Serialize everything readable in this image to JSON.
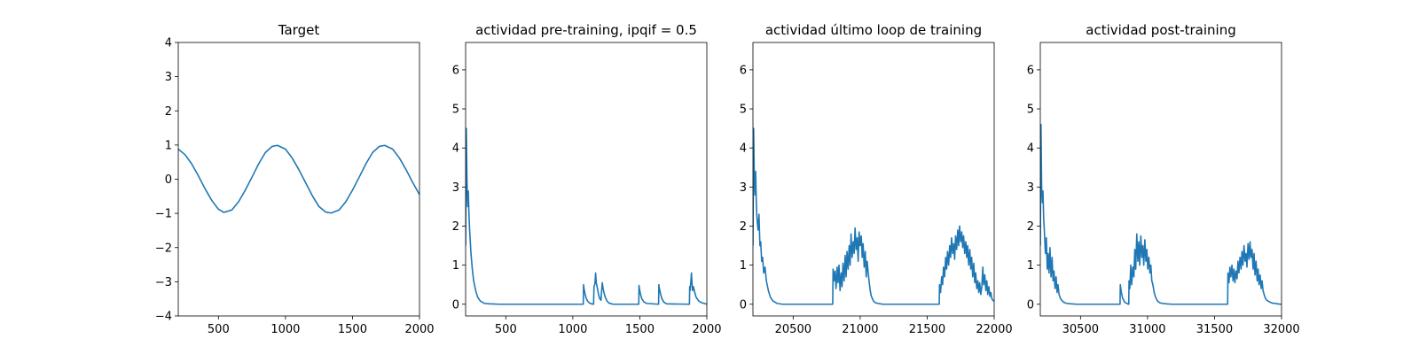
{
  "chart_data": [
    {
      "type": "line",
      "title": "Target",
      "xlim": [
        200,
        2000
      ],
      "ylim": [
        -4,
        4
      ],
      "xticks": [
        500,
        1000,
        1500,
        2000
      ],
      "yticks": [
        -4,
        -3,
        -2,
        -1,
        0,
        1,
        2,
        3,
        4
      ],
      "color": "#1f77b4",
      "series": [
        {
          "x": [
            200,
            250,
            300,
            350,
            400,
            450,
            500,
            540,
            600,
            650,
            700,
            750,
            800,
            850,
            900,
            940,
            1000,
            1050,
            1100,
            1150,
            1200,
            1250,
            1300,
            1340,
            1400,
            1450,
            1500,
            1550,
            1600,
            1650,
            1700,
            1740,
            1800,
            1850,
            1900,
            1950,
            2000
          ],
          "values": [
            0.88,
            0.72,
            0.45,
            0.1,
            -0.28,
            -0.62,
            -0.88,
            -0.97,
            -0.9,
            -0.66,
            -0.32,
            0.06,
            0.45,
            0.78,
            0.96,
            0.99,
            0.88,
            0.62,
            0.28,
            -0.1,
            -0.48,
            -0.8,
            -0.96,
            -0.99,
            -0.9,
            -0.66,
            -0.32,
            0.06,
            0.45,
            0.78,
            0.96,
            0.99,
            0.88,
            0.62,
            0.28,
            -0.1,
            -0.45
          ]
        }
      ]
    },
    {
      "type": "line",
      "title": "actividad pre-training, ipqif = 0.5",
      "xlim": [
        200,
        2000
      ],
      "ylim": [
        -0.3,
        6.7
      ],
      "xticks": [
        500,
        1000,
        1500,
        2000
      ],
      "yticks": [
        0,
        1,
        2,
        3,
        4,
        5,
        6
      ],
      "color": "#1f77b4",
      "series": [
        {
          "x": [
            200,
            205,
            210,
            215,
            220,
            225,
            230,
            240,
            250,
            260,
            275,
            290,
            310,
            340,
            380,
            450,
            1078,
            1080,
            1083,
            1090,
            1100,
            1110,
            1125,
            1140,
            1155,
            1158,
            1165,
            1170,
            1175,
            1178,
            1185,
            1192,
            1200,
            1210,
            1215,
            1220,
            1225,
            1232,
            1240,
            1255,
            1270,
            1300,
            1492,
            1494,
            1497,
            1505,
            1515,
            1530,
            1550,
            1640,
            1642,
            1645,
            1655,
            1665,
            1680,
            1700,
            1870,
            1872,
            1875,
            1880,
            1885,
            1890,
            1893,
            1900,
            1910,
            1920,
            1940,
            1960,
            1980,
            2000
          ],
          "values": [
            1.5,
            4.5,
            3.2,
            2.5,
            2.9,
            2.3,
            1.9,
            1.3,
            0.9,
            0.6,
            0.35,
            0.18,
            0.08,
            0.02,
            0.01,
            0.0,
            0.0,
            0.5,
            0.42,
            0.28,
            0.15,
            0.08,
            0.03,
            0.01,
            0.0,
            0.45,
            0.52,
            0.8,
            0.55,
            0.5,
            0.38,
            0.25,
            0.15,
            0.1,
            0.35,
            0.55,
            0.42,
            0.3,
            0.2,
            0.08,
            0.03,
            0.0,
            0.0,
            0.48,
            0.4,
            0.26,
            0.14,
            0.06,
            0.02,
            0.0,
            0.5,
            0.42,
            0.26,
            0.14,
            0.05,
            0.01,
            0.0,
            0.45,
            0.35,
            0.55,
            0.8,
            0.5,
            0.35,
            0.45,
            0.3,
            0.18,
            0.08,
            0.04,
            0.02,
            0.0
          ]
        }
      ]
    },
    {
      "type": "line",
      "title": "actividad último loop de training",
      "xlim": [
        20200,
        22000
      ],
      "ylim": [
        -0.3,
        6.7
      ],
      "xticks": [
        20500,
        21000,
        21500,
        22000
      ],
      "yticks": [
        0,
        1,
        2,
        3,
        4,
        5,
        6
      ],
      "color": "#1f77b4",
      "series": [
        {
          "x": [
            20200,
            20205,
            20210,
            20215,
            20220,
            20225,
            20230,
            20238,
            20245,
            20252,
            20258,
            20265,
            20272,
            20280,
            20290,
            20300,
            20315,
            20330,
            20350,
            20380,
            20420,
            20500,
            20795,
            20798,
            20805,
            20812,
            20820,
            20828,
            20835,
            20842,
            20850,
            20858,
            20865,
            20872,
            20880,
            20888,
            20895,
            20902,
            20910,
            20918,
            20925,
            20932,
            20940,
            20948,
            20955,
            20962,
            20970,
            20978,
            20985,
            20992,
            21000,
            21008,
            21015,
            21022,
            21030,
            21038,
            21045,
            21052,
            21060,
            21068,
            21075,
            21082,
            21090,
            21100,
            21110,
            21120,
            21135,
            21150,
            21170,
            21200,
            21250,
            21300,
            21590,
            21592,
            21600,
            21608,
            21615,
            21622,
            21630,
            21638,
            21645,
            21652,
            21660,
            21668,
            21675,
            21682,
            21690,
            21698,
            21705,
            21712,
            21720,
            21728,
            21735,
            21742,
            21750,
            21758,
            21765,
            21772,
            21780,
            21788,
            21795,
            21802,
            21810,
            21818,
            21825,
            21832,
            21840,
            21848,
            21855,
            21862,
            21870,
            21878,
            21885,
            21892,
            21900,
            21908,
            21915,
            21922,
            21930,
            21938,
            21945,
            21952,
            21960,
            21968,
            21975,
            21982,
            21990,
            22000
          ],
          "values": [
            1.5,
            4.5,
            3.3,
            2.8,
            3.4,
            2.6,
            2.2,
            1.9,
            2.3,
            1.5,
            1.6,
            1.1,
            1.2,
            0.8,
            0.95,
            0.6,
            0.35,
            0.18,
            0.08,
            0.02,
            0.0,
            0.0,
            0.0,
            0.9,
            0.6,
            0.85,
            0.4,
            0.95,
            0.55,
            1.0,
            0.35,
            0.8,
            0.45,
            1.05,
            0.6,
            1.25,
            0.7,
            1.35,
            0.9,
            1.5,
            1.0,
            1.8,
            1.2,
            1.6,
            1.3,
            1.95,
            1.4,
            1.7,
            1.1,
            1.85,
            1.5,
            1.75,
            1.2,
            1.55,
            0.95,
            1.35,
            0.7,
            1.1,
            0.8,
            0.55,
            0.35,
            0.22,
            0.15,
            0.08,
            0.05,
            0.03,
            0.02,
            0.01,
            0.0,
            0.0,
            0.0,
            0.0,
            0.0,
            0.5,
            0.3,
            0.7,
            0.5,
            0.95,
            0.7,
            1.2,
            0.9,
            1.35,
            1.0,
            1.5,
            1.2,
            1.7,
            1.3,
            1.55,
            1.15,
            1.75,
            1.4,
            1.9,
            1.5,
            2.0,
            1.6,
            1.85,
            1.45,
            1.75,
            1.3,
            1.6,
            1.2,
            1.5,
            1.0,
            1.4,
            0.9,
            1.2,
            0.7,
            1.05,
            0.55,
            0.8,
            0.4,
            0.6,
            0.3,
            0.55,
            0.25,
            0.45,
            0.95,
            0.5,
            0.75,
            0.35,
            0.6,
            0.25,
            0.45,
            0.2,
            0.3,
            0.15,
            0.1,
            0.08
          ]
        }
      ]
    },
    {
      "type": "line",
      "title": "actividad post-training",
      "xlim": [
        30200,
        32000
      ],
      "ylim": [
        -0.3,
        6.7
      ],
      "xticks": [
        30500,
        31000,
        31500,
        32000
      ],
      "yticks": [
        0,
        1,
        2,
        3,
        4,
        5,
        6
      ],
      "color": "#1f77b4",
      "series": [
        {
          "x": [
            30200,
            30205,
            30210,
            30215,
            30220,
            30225,
            30230,
            30238,
            30245,
            30252,
            30258,
            30265,
            30272,
            30280,
            30288,
            30295,
            30302,
            30310,
            30318,
            30325,
            30332,
            30340,
            30350,
            30365,
            30380,
            30400,
            30430,
            30470,
            30520,
            30795,
            30797,
            30805,
            30815,
            30830,
            30845,
            30860,
            30862,
            30868,
            30875,
            30882,
            30890,
            30898,
            30905,
            30912,
            30920,
            30928,
            30935,
            30942,
            30950,
            30958,
            30965,
            30972,
            30980,
            30988,
            30995,
            31002,
            31010,
            31018,
            31025,
            31032,
            31040,
            31050,
            31060,
            31075,
            31090,
            31110,
            31140,
            31180,
            31598,
            31600,
            31608,
            31615,
            31622,
            31630,
            31638,
            31645,
            31652,
            31660,
            31668,
            31675,
            31682,
            31690,
            31698,
            31705,
            31712,
            31720,
            31728,
            31735,
            31742,
            31750,
            31758,
            31765,
            31772,
            31780,
            31788,
            31795,
            31802,
            31810,
            31818,
            31825,
            31832,
            31840,
            31848,
            31855,
            31862,
            31870,
            31880,
            31890,
            31900,
            31915,
            31930,
            31950,
            31970,
            31990,
            32000
          ],
          "values": [
            1.5,
            4.6,
            3.0,
            2.6,
            2.9,
            2.2,
            1.9,
            1.3,
            1.7,
            0.9,
            1.3,
            0.8,
            1.45,
            0.7,
            1.2,
            0.6,
            0.85,
            0.4,
            0.7,
            0.3,
            0.5,
            0.25,
            0.15,
            0.08,
            0.04,
            0.02,
            0.01,
            0.0,
            0.0,
            0.0,
            0.5,
            0.3,
            0.15,
            0.05,
            0.02,
            0.0,
            0.6,
            0.4,
            1.0,
            0.5,
            0.95,
            0.7,
            1.4,
            0.9,
            1.8,
            1.1,
            1.6,
            1.0,
            1.75,
            1.2,
            1.5,
            1.0,
            1.65,
            1.1,
            1.4,
            0.9,
            1.2,
            0.8,
            1.0,
            0.6,
            0.5,
            0.3,
            0.18,
            0.08,
            0.04,
            0.02,
            0.01,
            0.0,
            0.0,
            0.8,
            0.55,
            0.95,
            0.7,
            1.0,
            0.6,
            0.9,
            0.55,
            0.85,
            0.65,
            1.1,
            0.8,
            1.2,
            0.9,
            1.35,
            1.0,
            1.5,
            1.1,
            1.3,
            0.95,
            1.55,
            1.15,
            1.6,
            1.2,
            1.4,
            0.9,
            1.3,
            0.75,
            1.1,
            0.6,
            0.9,
            0.5,
            0.75,
            0.4,
            0.6,
            0.35,
            0.25,
            0.15,
            0.1,
            0.08,
            0.05,
            0.03,
            0.02,
            0.01,
            0.0,
            0.0
          ]
        }
      ]
    }
  ]
}
